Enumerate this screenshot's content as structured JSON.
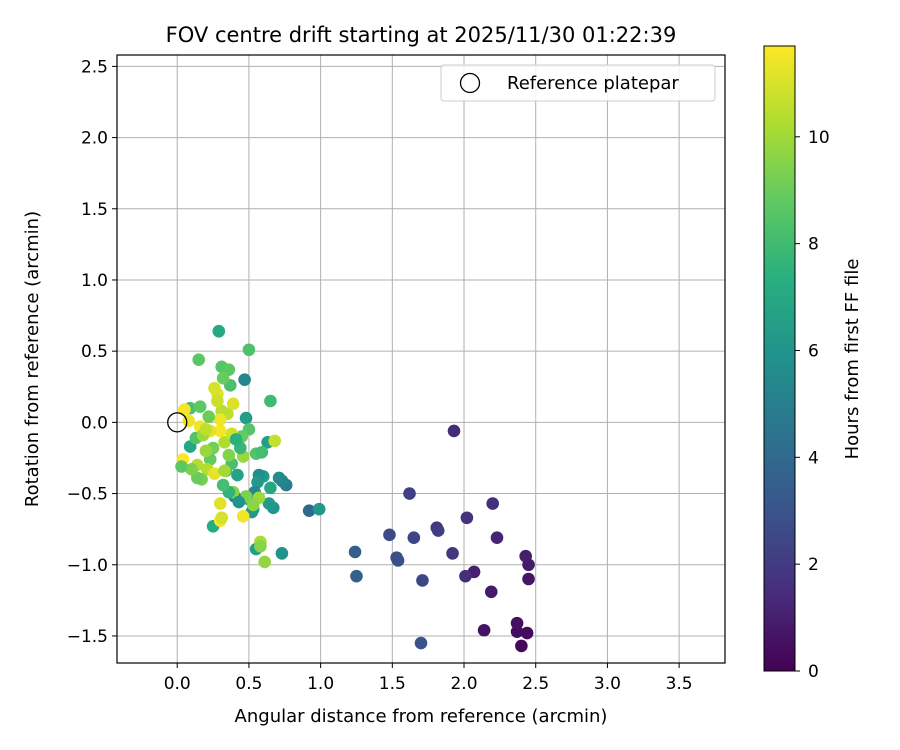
{
  "chart_data": {
    "type": "scatter",
    "title": "FOV centre drift starting at 2025/11/30 01:22:39",
    "xlabel": "Angular distance from reference (arcmin)",
    "ylabel": "Rotation from reference (arcmin)",
    "xlim": [
      -0.42,
      3.82
    ],
    "ylim": [
      -1.69,
      2.58
    ],
    "xticks": [
      0.0,
      0.5,
      1.0,
      1.5,
      2.0,
      2.5,
      3.0,
      3.5
    ],
    "yticks": [
      -1.5,
      -1.0,
      -0.5,
      0.0,
      0.5,
      1.0,
      1.5,
      2.0,
      2.5
    ],
    "grid": true,
    "legend": {
      "label": "Reference platepar",
      "position": "top-right"
    },
    "reference_point": {
      "x": 0.0,
      "y": 0.0
    },
    "colorbar": {
      "label": "Hours from first FF file",
      "range": [
        0,
        11.7
      ],
      "ticks": [
        0,
        2,
        4,
        6,
        8,
        10
      ],
      "colormap": "viridis"
    },
    "points": [
      {
        "x": 2.4,
        "y": -1.57,
        "h": 0.2
      },
      {
        "x": 2.44,
        "y": -1.48,
        "h": 0.3
      },
      {
        "x": 2.37,
        "y": -1.47,
        "h": 0.4
      },
      {
        "x": 2.37,
        "y": -1.41,
        "h": 0.5
      },
      {
        "x": 2.14,
        "y": -1.46,
        "h": 0.6
      },
      {
        "x": 2.19,
        "y": -1.19,
        "h": 0.8
      },
      {
        "x": 2.45,
        "y": -1.1,
        "h": 0.7
      },
      {
        "x": 2.45,
        "y": -1.0,
        "h": 0.9
      },
      {
        "x": 2.43,
        "y": -0.94,
        "h": 1.0
      },
      {
        "x": 2.07,
        "y": -1.05,
        "h": 1.1
      },
      {
        "x": 2.23,
        "y": -0.81,
        "h": 1.2
      },
      {
        "x": 2.01,
        "y": -1.08,
        "h": 1.5
      },
      {
        "x": 1.93,
        "y": -0.06,
        "h": 1.4
      },
      {
        "x": 2.2,
        "y": -0.57,
        "h": 1.6
      },
      {
        "x": 2.02,
        "y": -0.67,
        "h": 1.7
      },
      {
        "x": 1.92,
        "y": -0.92,
        "h": 1.9
      },
      {
        "x": 1.81,
        "y": -0.74,
        "h": 2.0
      },
      {
        "x": 1.82,
        "y": -0.76,
        "h": 2.1
      },
      {
        "x": 1.62,
        "y": -0.5,
        "h": 2.3
      },
      {
        "x": 1.65,
        "y": -0.81,
        "h": 2.4
      },
      {
        "x": 1.71,
        "y": -1.11,
        "h": 2.5
      },
      {
        "x": 1.48,
        "y": -0.79,
        "h": 2.6
      },
      {
        "x": 1.53,
        "y": -0.95,
        "h": 2.8
      },
      {
        "x": 1.54,
        "y": -0.97,
        "h": 2.9
      },
      {
        "x": 1.7,
        "y": -1.55,
        "h": 3.0
      },
      {
        "x": 1.24,
        "y": -0.91,
        "h": 3.5
      },
      {
        "x": 1.25,
        "y": -1.08,
        "h": 3.6
      },
      {
        "x": 0.92,
        "y": -0.62,
        "h": 4.0
      },
      {
        "x": 0.99,
        "y": -0.61,
        "h": 6.2
      },
      {
        "x": 0.73,
        "y": -0.92,
        "h": 6.0
      },
      {
        "x": 0.76,
        "y": -0.44,
        "h": 5.0
      },
      {
        "x": 0.73,
        "y": -0.41,
        "h": 5.3
      },
      {
        "x": 0.71,
        "y": -0.39,
        "h": 5.6
      },
      {
        "x": 0.67,
        "y": -0.6,
        "h": 6.1
      },
      {
        "x": 0.64,
        "y": -0.57,
        "h": 6.3
      },
      {
        "x": 0.65,
        "y": -0.46,
        "h": 7.0
      },
      {
        "x": 0.63,
        "y": -0.14,
        "h": 6.5
      },
      {
        "x": 0.6,
        "y": -0.38,
        "h": 6.4
      },
      {
        "x": 0.57,
        "y": -0.37,
        "h": 5.8
      },
      {
        "x": 0.56,
        "y": -0.42,
        "h": 6.3
      },
      {
        "x": 0.54,
        "y": -0.49,
        "h": 5.5
      },
      {
        "x": 0.53,
        "y": -0.61,
        "h": 6.9
      },
      {
        "x": 0.52,
        "y": -0.63,
        "h": 6.2
      },
      {
        "x": 0.55,
        "y": -0.89,
        "h": 6.6
      },
      {
        "x": 0.5,
        "y": -0.54,
        "h": 7.1
      },
      {
        "x": 0.48,
        "y": 0.03,
        "h": 6.5
      },
      {
        "x": 0.47,
        "y": 0.3,
        "h": 5.4
      },
      {
        "x": 0.5,
        "y": 0.51,
        "h": 8.4
      },
      {
        "x": 0.29,
        "y": 0.64,
        "h": 7.1
      },
      {
        "x": 0.15,
        "y": 0.44,
        "h": 8.7
      },
      {
        "x": 0.31,
        "y": 0.39,
        "h": 8.6
      },
      {
        "x": 0.36,
        "y": 0.37,
        "h": 8.8
      },
      {
        "x": 0.37,
        "y": 0.26,
        "h": 8.3
      },
      {
        "x": 0.32,
        "y": 0.31,
        "h": 9.0
      },
      {
        "x": 0.65,
        "y": 0.15,
        "h": 8.0
      },
      {
        "x": 0.68,
        "y": -0.13,
        "h": 10.7
      },
      {
        "x": 0.58,
        "y": -0.84,
        "h": 10.2
      },
      {
        "x": 0.58,
        "y": -0.87,
        "h": 9.6
      },
      {
        "x": 0.61,
        "y": -0.98,
        "h": 9.8
      },
      {
        "x": 0.57,
        "y": -0.53,
        "h": 10.0
      },
      {
        "x": 0.53,
        "y": -0.58,
        "h": 9.7
      },
      {
        "x": 0.48,
        "y": -0.52,
        "h": 9.4
      },
      {
        "x": 0.46,
        "y": -0.66,
        "h": 11.5
      },
      {
        "x": 0.46,
        "y": -0.24,
        "h": 9.9
      },
      {
        "x": 0.5,
        "y": -0.05,
        "h": 8.6
      },
      {
        "x": 0.45,
        "y": -0.1,
        "h": 8.9
      },
      {
        "x": 0.4,
        "y": -0.52,
        "h": 5.4
      },
      {
        "x": 0.39,
        "y": -0.49,
        "h": 9.6
      },
      {
        "x": 0.36,
        "y": -0.49,
        "h": 7.6
      },
      {
        "x": 0.34,
        "y": -0.34,
        "h": 8.0
      },
      {
        "x": 0.38,
        "y": -0.29,
        "h": 8.3
      },
      {
        "x": 0.36,
        "y": -0.23,
        "h": 9.5
      },
      {
        "x": 0.33,
        "y": -0.14,
        "h": 10.3
      },
      {
        "x": 0.38,
        "y": -0.08,
        "h": 10.9
      },
      {
        "x": 0.39,
        "y": 0.13,
        "h": 11.1
      },
      {
        "x": 0.35,
        "y": 0.06,
        "h": 10.6
      },
      {
        "x": 0.31,
        "y": 0.08,
        "h": 10.5
      },
      {
        "x": 0.3,
        "y": -0.06,
        "h": 11.6
      },
      {
        "x": 0.3,
        "y": 0.02,
        "h": 11.4
      },
      {
        "x": 0.28,
        "y": 0.2,
        "h": 11.2
      },
      {
        "x": 0.26,
        "y": 0.24,
        "h": 11.0
      },
      {
        "x": 0.28,
        "y": 0.15,
        "h": 10.8
      },
      {
        "x": 0.23,
        "y": -0.06,
        "h": 11.3
      },
      {
        "x": 0.23,
        "y": -0.26,
        "h": 8.9
      },
      {
        "x": 0.25,
        "y": -0.18,
        "h": 9.2
      },
      {
        "x": 0.2,
        "y": -0.2,
        "h": 9.9
      },
      {
        "x": 0.21,
        "y": -0.33,
        "h": 10.4
      },
      {
        "x": 0.26,
        "y": -0.36,
        "h": 11.3
      },
      {
        "x": 0.33,
        "y": -0.34,
        "h": 10.1
      },
      {
        "x": 0.32,
        "y": -0.44,
        "h": 8.2
      },
      {
        "x": 0.17,
        "y": -0.4,
        "h": 9.3
      },
      {
        "x": 0.14,
        "y": -0.39,
        "h": 9.0
      },
      {
        "x": 0.14,
        "y": -0.3,
        "h": 10.4
      },
      {
        "x": 0.1,
        "y": -0.33,
        "h": 9.4
      },
      {
        "x": 0.09,
        "y": -0.17,
        "h": 7.0
      },
      {
        "x": 0.13,
        "y": -0.11,
        "h": 8.5
      },
      {
        "x": 0.16,
        "y": -0.03,
        "h": 11.5
      },
      {
        "x": 0.18,
        "y": -0.09,
        "h": 10.0
      },
      {
        "x": 0.2,
        "y": -0.05,
        "h": 10.6
      },
      {
        "x": 0.22,
        "y": 0.04,
        "h": 9.1
      },
      {
        "x": 0.09,
        "y": 0.1,
        "h": 8.3
      },
      {
        "x": 0.16,
        "y": 0.11,
        "h": 8.8
      },
      {
        "x": 0.05,
        "y": 0.09,
        "h": 11.6
      },
      {
        "x": 0.08,
        "y": 0.01,
        "h": 11.4
      },
      {
        "x": 0.04,
        "y": -0.26,
        "h": 11.7
      },
      {
        "x": 0.03,
        "y": -0.31,
        "h": 8.8
      },
      {
        "x": 0.25,
        "y": -0.73,
        "h": 7.2
      },
      {
        "x": 0.3,
        "y": -0.57,
        "h": 11.2
      },
      {
        "x": 0.3,
        "y": -0.69,
        "h": 11.6
      },
      {
        "x": 0.31,
        "y": -0.67,
        "h": 11.0
      },
      {
        "x": 0.44,
        "y": -0.18,
        "h": 7.8
      },
      {
        "x": 0.42,
        "y": -0.37,
        "h": 6.8
      },
      {
        "x": 0.55,
        "y": -0.22,
        "h": 8.5
      },
      {
        "x": 0.59,
        "y": -0.21,
        "h": 8.1
      },
      {
        "x": 0.41,
        "y": -0.12,
        "h": 7.4
      },
      {
        "x": 0.43,
        "y": -0.56,
        "h": 6.0
      }
    ]
  }
}
